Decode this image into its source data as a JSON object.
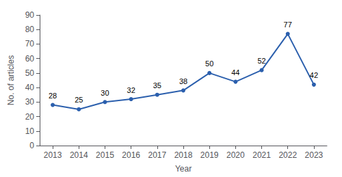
{
  "chart_data": {
    "type": "line",
    "x": [
      2013,
      2014,
      2015,
      2016,
      2017,
      2018,
      2019,
      2020,
      2021,
      2022,
      2023
    ],
    "values": [
      28,
      25,
      30,
      32,
      35,
      38,
      50,
      44,
      52,
      77,
      42
    ],
    "color": "#2b5fad",
    "marker": "circle",
    "xlabel": "Year",
    "ylabel": "No. of articles",
    "xlim": [
      2012.5,
      2023.5
    ],
    "xticks": [
      2013,
      2014,
      2015,
      2016,
      2017,
      2018,
      2019,
      2020,
      2021,
      2022,
      2023
    ],
    "ylim": [
      0,
      90
    ],
    "yticks": [
      0,
      10,
      20,
      30,
      40,
      50,
      60,
      70,
      80,
      90
    ],
    "grid": false,
    "data_labels": true
  }
}
